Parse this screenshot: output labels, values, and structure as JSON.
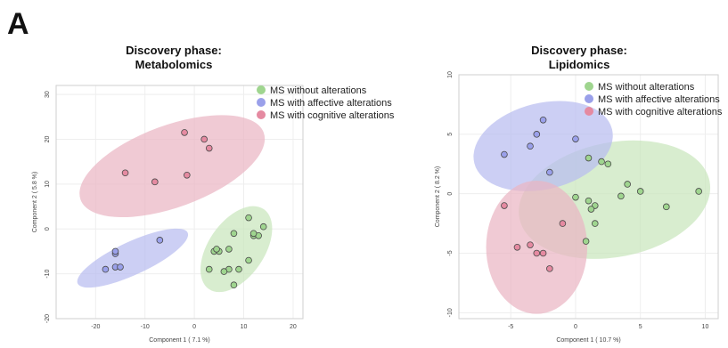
{
  "figure_label": "A",
  "legend_entries": [
    "MS without alterations",
    "MS with affective alterations",
    "MS with cognitive alterations"
  ],
  "group_colors": {
    "without": "#c9e6bd",
    "affective": "#b9bdf0",
    "cognitive": "#eab6c4"
  },
  "point_colors": {
    "without": "#9fd58f",
    "affective": "#9aa0ea",
    "cognitive": "#e58aa1"
  },
  "chart_data": [
    {
      "type": "scatter",
      "title": "Discovery phase:\nMetabolomics",
      "title_lines": [
        "Discovery phase:",
        "Metabolomics"
      ],
      "xlabel": "Component 1 ( 7.1 %)",
      "ylabel": "Component 2 ( 5.8 %)",
      "xlim": [
        -28,
        22
      ],
      "ylim": [
        -20,
        32
      ],
      "xticks": [
        -20,
        -10,
        0,
        10,
        20
      ],
      "yticks": [
        -20,
        -10,
        0,
        10,
        20,
        30
      ],
      "grid": true,
      "legend_position": "top-right",
      "series": [
        {
          "name": "MS without alterations",
          "key": "without",
          "x": [
            4,
            5,
            4.5,
            7,
            8,
            9,
            11,
            12,
            13,
            14,
            12,
            11,
            7,
            3,
            6,
            8
          ],
          "y": [
            -5,
            -5,
            -4.5,
            -4.5,
            -1,
            -9,
            2.5,
            -1.5,
            -1.5,
            0.5,
            -1,
            -7,
            -9,
            -9,
            -9.5,
            -12.5
          ]
        },
        {
          "name": "MS with affective alterations",
          "key": "affective",
          "x": [
            -18,
            -16,
            -16,
            -15,
            -16,
            -7
          ],
          "y": [
            -9,
            -8.5,
            -5.5,
            -8.5,
            -5,
            -2.5
          ]
        },
        {
          "name": "MS with cognitive alterations",
          "key": "cognitive",
          "x": [
            -14,
            -8,
            -2,
            -1.5,
            2,
            3
          ],
          "y": [
            12.5,
            10.5,
            21.5,
            12,
            20,
            18
          ]
        }
      ],
      "ellipses": [
        {
          "key": "without",
          "cx": 8.5,
          "cy": -4.5,
          "rx": 10.5,
          "ry": 5.8,
          "angle_deg": 58
        },
        {
          "key": "affective",
          "cx": -12.5,
          "cy": -6.5,
          "rx": 12.5,
          "ry": 3.6,
          "angle_deg": 27
        },
        {
          "key": "cognitive",
          "cx": -4.5,
          "cy": 14,
          "rx": 20,
          "ry": 9,
          "angle_deg": 22
        }
      ]
    },
    {
      "type": "scatter",
      "title": "Discovery phase:\nLipidomics",
      "title_lines": [
        "Discovery phase:",
        "Lipidomics"
      ],
      "xlabel": "Component 1 ( 10.7 %)",
      "ylabel": "Component 2 ( 8.2 %)",
      "xlim": [
        -9,
        11
      ],
      "ylim": [
        -10.5,
        10
      ],
      "xticks": [
        -5,
        0,
        5,
        10
      ],
      "yticks": [
        -10,
        -5,
        0,
        5,
        10
      ],
      "grid": true,
      "legend_position": "top-right",
      "series": [
        {
          "name": "MS without alterations",
          "key": "without",
          "x": [
            1,
            2.5,
            2,
            0,
            1,
            1.5,
            1.2,
            3.5,
            4,
            5,
            7,
            9.5,
            1.5,
            0.8
          ],
          "y": [
            3,
            2.5,
            2.7,
            -0.3,
            -0.6,
            -1,
            -1.3,
            -0.2,
            0.8,
            0.2,
            -1.1,
            0.2,
            -2.5,
            -4
          ]
        },
        {
          "name": "MS with affective alterations",
          "key": "affective",
          "x": [
            -2.5,
            -3,
            -3.5,
            -5.5,
            -2,
            0
          ],
          "y": [
            6.2,
            5,
            4,
            3.3,
            1.8,
            4.6
          ]
        },
        {
          "name": "MS with cognitive alterations",
          "key": "cognitive",
          "x": [
            -5.5,
            -4.5,
            -3.5,
            -2.5,
            -2,
            -1,
            -3
          ],
          "y": [
            -1,
            -4.5,
            -4.3,
            -5,
            -6.3,
            -2.5,
            -5
          ]
        }
      ],
      "ellipses": [
        {
          "key": "without",
          "cx": 3,
          "cy": -0.5,
          "rx": 7.5,
          "ry": 4.8,
          "angle_deg": 12
        },
        {
          "key": "affective",
          "cx": -2.5,
          "cy": 4,
          "rx": 5.5,
          "ry": 3.6,
          "angle_deg": 15
        },
        {
          "key": "cognitive",
          "cx": -3,
          "cy": -4.5,
          "rx": 3.9,
          "ry": 5.6,
          "angle_deg": 0
        }
      ]
    }
  ]
}
